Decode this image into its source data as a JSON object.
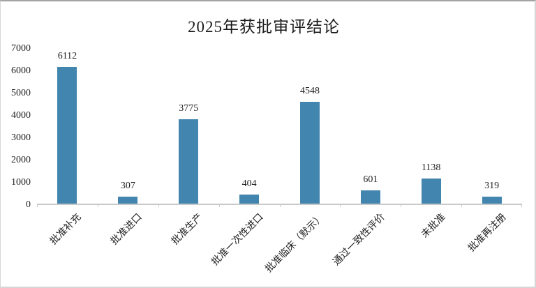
{
  "chart_data": {
    "type": "bar",
    "title": "2025年获批审评结论",
    "categories": [
      "批准补充",
      "批准进口",
      "批准生产",
      "批准一次性进口",
      "批准临床（默示）",
      "通过一致性评价",
      "未批准",
      "批准再注册"
    ],
    "values": [
      6112,
      307,
      3775,
      404,
      4548,
      601,
      1138,
      319
    ],
    "data_labels": [
      "6112",
      "307",
      "3775",
      "404",
      "4548",
      "601",
      "1138",
      "319"
    ],
    "ylim": [
      0,
      7000
    ],
    "ytick_step": 1000,
    "yticklabels": [
      "0",
      "1000",
      "2000",
      "3000",
      "4000",
      "5000",
      "6000",
      "7000"
    ],
    "xlabel": "",
    "ylabel": "",
    "grid": false,
    "legend": "none",
    "colors": {
      "bar": "#4285ae",
      "axis": "#c9c9c9",
      "text": "#1f1f1f",
      "frame_border": "#d6d6d6"
    }
  }
}
